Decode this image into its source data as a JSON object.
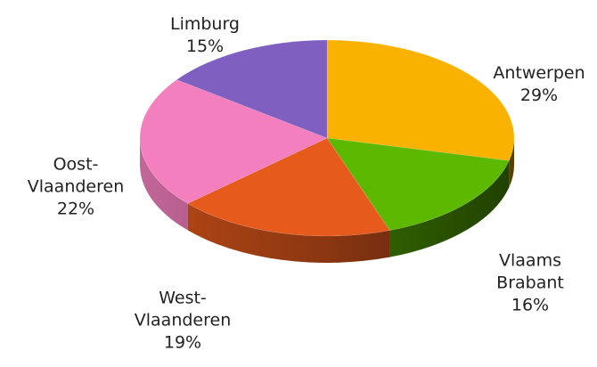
{
  "chart_data": {
    "type": "pie",
    "categories": [
      "Antwerpen",
      "Vlaams Brabant",
      "West-Vlaanderen",
      "Oost-Vlaanderen",
      "Limburg"
    ],
    "values": [
      29,
      16,
      19,
      22,
      15
    ],
    "value_labels": [
      "29%",
      "16%",
      "19%",
      "22%",
      "15%"
    ],
    "colors": [
      "#f9b200",
      "#5cb800",
      "#e65a1c",
      "#f47fbf",
      "#7f5fbf"
    ]
  }
}
